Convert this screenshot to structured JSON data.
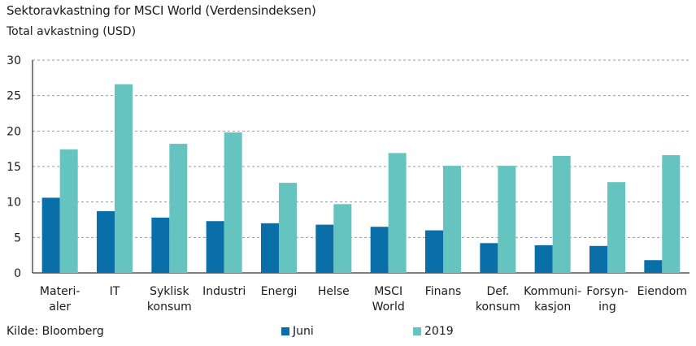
{
  "title": "Sektoravkastning for MSCI World (Verdensindeksen)",
  "subtitle": "Total avkastning (USD)",
  "source": "Kilde: Bloomberg",
  "colors": {
    "juni": "#0a6fa8",
    "y2019": "#66c4c0",
    "grid": "#9a9a9a",
    "axis": "#000000"
  },
  "chart_data": {
    "type": "bar",
    "ylim": [
      0,
      30
    ],
    "yticks": [
      0,
      5,
      10,
      15,
      20,
      25,
      30
    ],
    "grid": true,
    "legend_position": "bottom",
    "categories": [
      [
        "Materi-",
        "aler"
      ],
      [
        "IT"
      ],
      [
        "Syklisk",
        "konsum"
      ],
      [
        "Industri"
      ],
      [
        "Energi"
      ],
      [
        "Helse"
      ],
      [
        "MSCI",
        "World"
      ],
      [
        "Finans"
      ],
      [
        "Def.",
        "konsum"
      ],
      [
        "Kommuni-",
        "kasjon"
      ],
      [
        "Forsyn-",
        "ing"
      ],
      [
        "Eiendom"
      ]
    ],
    "series": [
      {
        "name": "Juni",
        "values": [
          10.6,
          8.7,
          7.8,
          7.3,
          7.0,
          6.8,
          6.5,
          6.0,
          4.2,
          3.9,
          3.8,
          1.8
        ]
      },
      {
        "name": "2019",
        "values": [
          17.4,
          26.6,
          18.2,
          19.8,
          12.7,
          9.7,
          16.9,
          15.1,
          15.1,
          16.5,
          12.8,
          16.6
        ]
      }
    ]
  }
}
